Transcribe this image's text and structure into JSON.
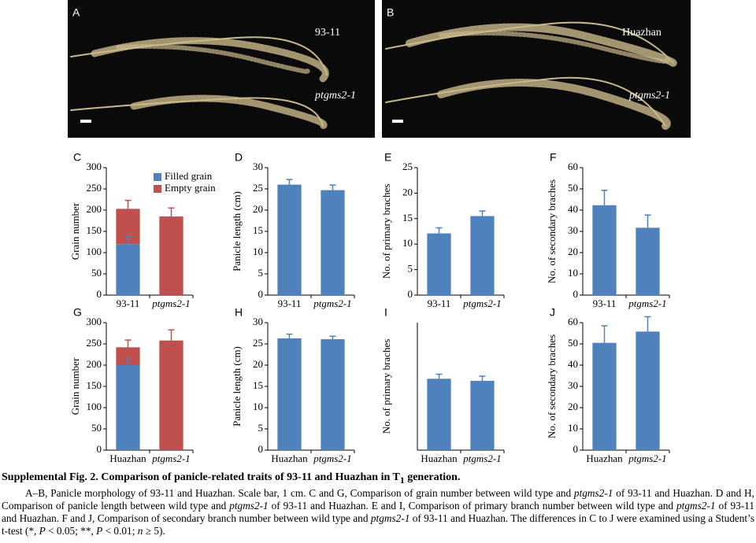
{
  "panels": [
    {
      "letter": "A",
      "labels": [
        "93-11",
        "ptgms2-1"
      ],
      "label_italic": [
        false,
        true
      ]
    },
    {
      "letter": "B",
      "labels": [
        "Huazhan",
        "ptgms2-1"
      ],
      "label_italic": [
        false,
        true
      ]
    }
  ],
  "chart_data": [
    {
      "type": "stacked-bar",
      "panel_label": "C",
      "ylabel": "Grain number",
      "categories": [
        "93-11",
        "ptgms2-1"
      ],
      "category_italic": [
        false,
        true
      ],
      "ylim": [
        0,
        300
      ],
      "yticks": [
        0,
        50,
        100,
        150,
        200,
        250,
        300
      ],
      "legend": "upper right",
      "series": [
        {
          "name": "Filled grain",
          "color": "#4f81bd",
          "values": [
            120,
            0
          ],
          "errors": [
            18,
            null
          ]
        },
        {
          "name": "Empty grain",
          "color": "#c0504d",
          "values": [
            83,
            185
          ],
          "errors": [
            20,
            20
          ]
        }
      ]
    },
    {
      "type": "bar",
      "panel_label": "D",
      "ylabel": "Panicle length (cm)",
      "categories": [
        "93-11",
        "ptgms2-1"
      ],
      "category_italic": [
        false,
        true
      ],
      "ylim": [
        0,
        30
      ],
      "yticks": [
        0,
        5,
        10,
        15,
        20,
        25,
        30
      ],
      "series": [
        {
          "color": "#4f81bd",
          "values": [
            26,
            24.7
          ],
          "errors": [
            1.2,
            1.2
          ]
        }
      ]
    },
    {
      "type": "bar",
      "panel_label": "E",
      "ylabel": "No. of primary braches",
      "categories": [
        "93-11",
        "ptgms2-1"
      ],
      "category_italic": [
        false,
        true
      ],
      "ylim": [
        0,
        25
      ],
      "yticks": [
        0,
        5,
        10,
        15,
        20,
        25
      ],
      "series": [
        {
          "color": "#4f81bd",
          "values": [
            12.1,
            15.5
          ],
          "errors": [
            1.1,
            1.0
          ]
        }
      ]
    },
    {
      "type": "bar",
      "panel_label": "F",
      "ylabel": "No. of secondary braches",
      "categories": [
        "93-11",
        "ptgms2-1"
      ],
      "category_italic": [
        false,
        true
      ],
      "ylim": [
        0,
        60
      ],
      "yticks": [
        0,
        10,
        20,
        30,
        40,
        50,
        60
      ],
      "series": [
        {
          "color": "#4f81bd",
          "values": [
            42.3,
            31.7
          ],
          "errors": [
            7,
            6
          ]
        }
      ]
    },
    {
      "type": "stacked-bar",
      "panel_label": "G",
      "ylabel": "Grain number",
      "categories": [
        "Huazhan",
        "ptgms2-1"
      ],
      "category_italic": [
        false,
        true
      ],
      "ylim": [
        0,
        300
      ],
      "yticks": [
        0,
        50,
        100,
        150,
        200,
        250,
        300
      ],
      "series": [
        {
          "color": "#4f81bd",
          "values": [
            200,
            0
          ],
          "errors": [
            15,
            null
          ]
        },
        {
          "color": "#c0504d",
          "values": [
            42,
            258
          ],
          "errors": [
            17,
            25
          ]
        }
      ]
    },
    {
      "type": "bar",
      "panel_label": "H",
      "ylabel": "Panicle length (cm)",
      "categories": [
        "Huazhan",
        "ptgms2-1"
      ],
      "category_italic": [
        false,
        true
      ],
      "ylim": [
        0,
        30
      ],
      "yticks": [
        0,
        5,
        10,
        15,
        20,
        25,
        30
      ],
      "series": [
        {
          "color": "#4f81bd",
          "values": [
            26.3,
            26.1
          ],
          "errors": [
            1,
            0.7
          ]
        }
      ]
    },
    {
      "type": "bar",
      "panel_label": "I",
      "ylabel": "No. of primary braches",
      "categories": [
        "Huazhan",
        "ptgms2-1"
      ],
      "category_italic": [
        false,
        true
      ],
      "ylim": [
        0,
        25
      ],
      "series": [
        {
          "color": "#4f81bd",
          "values": [
            14,
            13.6
          ],
          "errors": [
            0.9,
            0.9
          ]
        }
      ]
    },
    {
      "type": "bar",
      "panel_label": "J",
      "ylabel": "No. of secondary braches",
      "categories": [
        "Huazhan",
        "ptgms2-1"
      ],
      "category_italic": [
        false,
        true
      ],
      "ylim": [
        0,
        60
      ],
      "yticks": [
        0,
        10,
        20,
        30,
        40,
        50,
        60
      ],
      "series": [
        {
          "color": "#4f81bd",
          "values": [
            50.5,
            55.8
          ],
          "errors": [
            8,
            7
          ]
        }
      ]
    }
  ],
  "caption": {
    "title": "Supplemental Fig. 2. Comparison of panicle-related traits of 93-11 and Huazhan in T",
    "title_sub": "1",
    "title_end": " generation.",
    "body": [
      {
        "t": "A–B, Panicle morphology of 93-11 and Huazhan. Scale bar, 1 cm. C and G, Comparison of grain number between wild type and "
      },
      {
        "t": "ptgms2-1",
        "i": true
      },
      {
        "t": " of 93-11 and Huazhan. D and H, Comparison of panicle length between wild type and "
      },
      {
        "t": "ptgms2-1",
        "i": true
      },
      {
        "t": " of 93-11 and Huazhan. E and I, Comparison of primary branch number between wild type and "
      },
      {
        "t": "ptgms2-1",
        "i": true
      },
      {
        "t": " of 93-11 and Huazhan. F and J, Comparison of secondary branch number between wild type and "
      },
      {
        "t": "ptgms2-1",
        "i": true
      },
      {
        "t": " of 93-11 and Huazhan. The differences in C to J were examined using a Student’s t-test (*, "
      },
      {
        "t": "P",
        "i": true
      },
      {
        "t": " < 0.05; **, "
      },
      {
        "t": "P",
        "i": true
      },
      {
        "t": " < 0.01; "
      },
      {
        "t": "n",
        "i": true
      },
      {
        "t": " ≥ 5)."
      }
    ]
  }
}
